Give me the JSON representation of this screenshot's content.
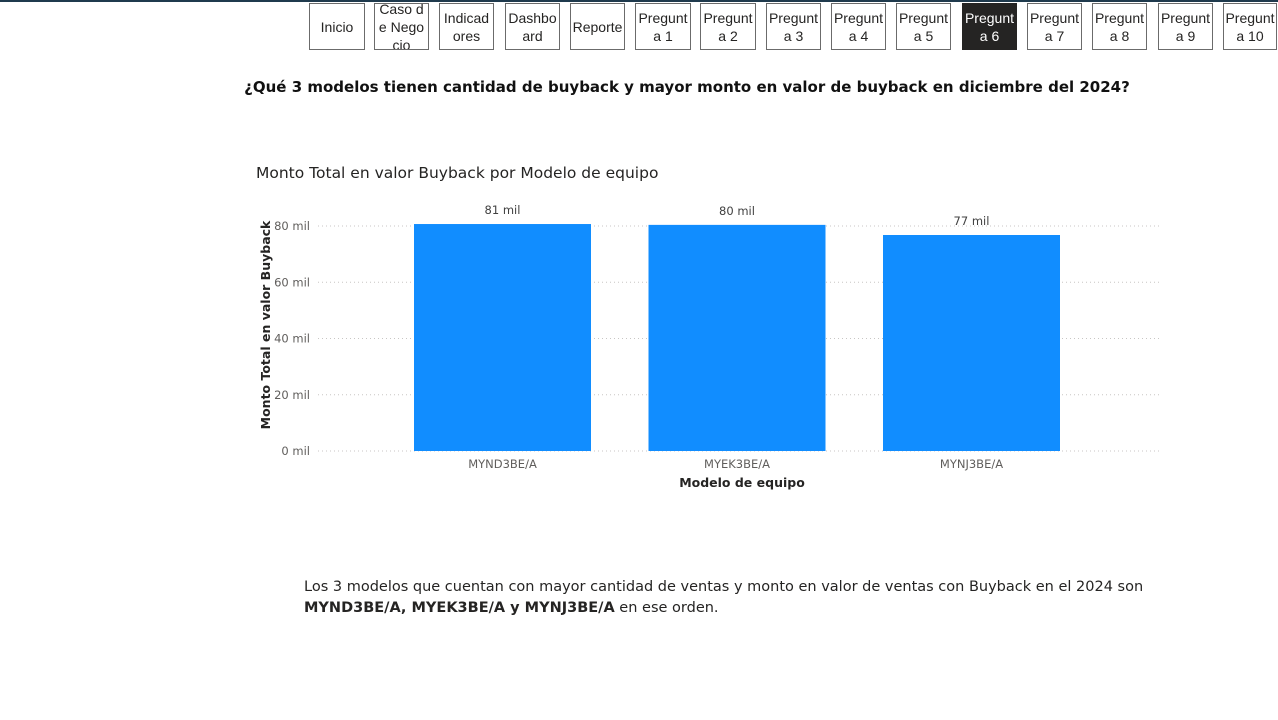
{
  "nav": {
    "items": [
      {
        "label": "Inicio",
        "active": false
      },
      {
        "label": "Caso de Negocio",
        "active": false
      },
      {
        "label": "Indicadores",
        "active": false
      },
      {
        "label": "Dashboard",
        "active": false
      },
      {
        "label": "Reporte",
        "active": false
      },
      {
        "label": "Pregunta 1",
        "active": false
      },
      {
        "label": "Pregunta 2",
        "active": false
      },
      {
        "label": "Pregunta 3",
        "active": false
      },
      {
        "label": "Pregunta 4",
        "active": false
      },
      {
        "label": "Pregunta 5",
        "active": false
      },
      {
        "label": "Pregunta 6",
        "active": true
      },
      {
        "label": "Pregunta 7",
        "active": false
      },
      {
        "label": "Pregunta 8",
        "active": false
      },
      {
        "label": "Pregunta 9",
        "active": false
      },
      {
        "label": "Pregunta 10",
        "active": false
      }
    ]
  },
  "question": "¿Qué 3 modelos tienen cantidad de buyback y mayor monto en valor de buyback en diciembre del 2024?",
  "chart_data": {
    "type": "bar",
    "title": "Monto Total en valor Buyback por Modelo de equipo",
    "xlabel": "Modelo de equipo",
    "ylabel": "Monto Total en valor Buyback",
    "categories": [
      "MYND3BE/A",
      "MYEK3BE/A",
      "MYNJ3BE/A"
    ],
    "values": [
      80700,
      80400,
      76800
    ],
    "data_labels": [
      "81 mil",
      "80 mil",
      "77 mil"
    ],
    "ylim": [
      0,
      80000
    ],
    "yticks": [
      0,
      20000,
      40000,
      60000,
      80000
    ],
    "ytick_labels": [
      "0 mil",
      "20 mil",
      "40 mil",
      "60 mil",
      "80 mil"
    ],
    "grid": true,
    "bar_color": "#118DFF"
  },
  "conclusion": {
    "text_before": "Los 3 modelos que cuentan con mayor cantidad de ventas y monto en valor de ventas con Buyback en el 2024 son ",
    "bold": "MYND3BE/A, MYEK3BE/A y MYNJ3BE/A",
    "text_after": " en ese orden."
  }
}
